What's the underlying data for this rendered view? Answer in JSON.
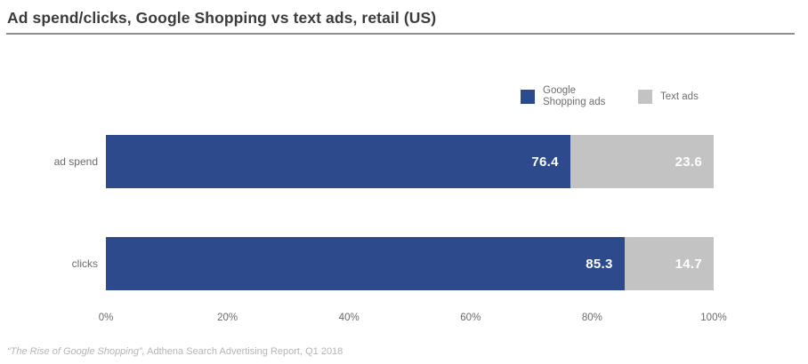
{
  "page": {
    "title": "Ad spend/clicks, Google Shopping vs text ads, retail (US)",
    "source_italic": "“The Rise of Google Shopping”,",
    "source_rest": " Adthena Search Advertising Report, Q1 2018"
  },
  "colors": {
    "google_shopping_blue": "#2d4b8c",
    "text_ads_gray": "#c3c3c3",
    "title_text": "#3b3b3b",
    "title_rule": "#8f8f8f",
    "axis_label_text": "#6b6b6b",
    "legend_text": "#6e6e6e",
    "value_label_text": "#ffffff",
    "source_text": "#b5b5b5",
    "background": "#ffffff"
  },
  "chart_data": {
    "type": "bar",
    "orientation": "horizontal",
    "stacked": true,
    "title": "Ad spend/clicks, Google Shopping vs text ads, retail (US)",
    "categories": [
      "ad spend",
      "clicks"
    ],
    "series": [
      {
        "name": "Google Shopping ads",
        "color": "#2d4b8c",
        "values": [
          76.4,
          85.3
        ]
      },
      {
        "name": "Text ads",
        "color": "#c3c3c3",
        "values": [
          23.6,
          14.7
        ]
      }
    ],
    "value_labels": [
      [
        "76.4",
        "23.6"
      ],
      [
        "85.3",
        "14.7"
      ]
    ],
    "xlabel": "",
    "ylabel": "",
    "xlim": [
      0,
      100
    ],
    "xticks": [
      "0%",
      "20%",
      "40%",
      "60%",
      "80%",
      "100%"
    ],
    "xtick_values": [
      0,
      20,
      40,
      60,
      80,
      100
    ],
    "grid": false,
    "legend_position": "top-right",
    "source": "“The Rise of Google Shopping”, Adthena Search Advertising Report, Q1 2018"
  }
}
